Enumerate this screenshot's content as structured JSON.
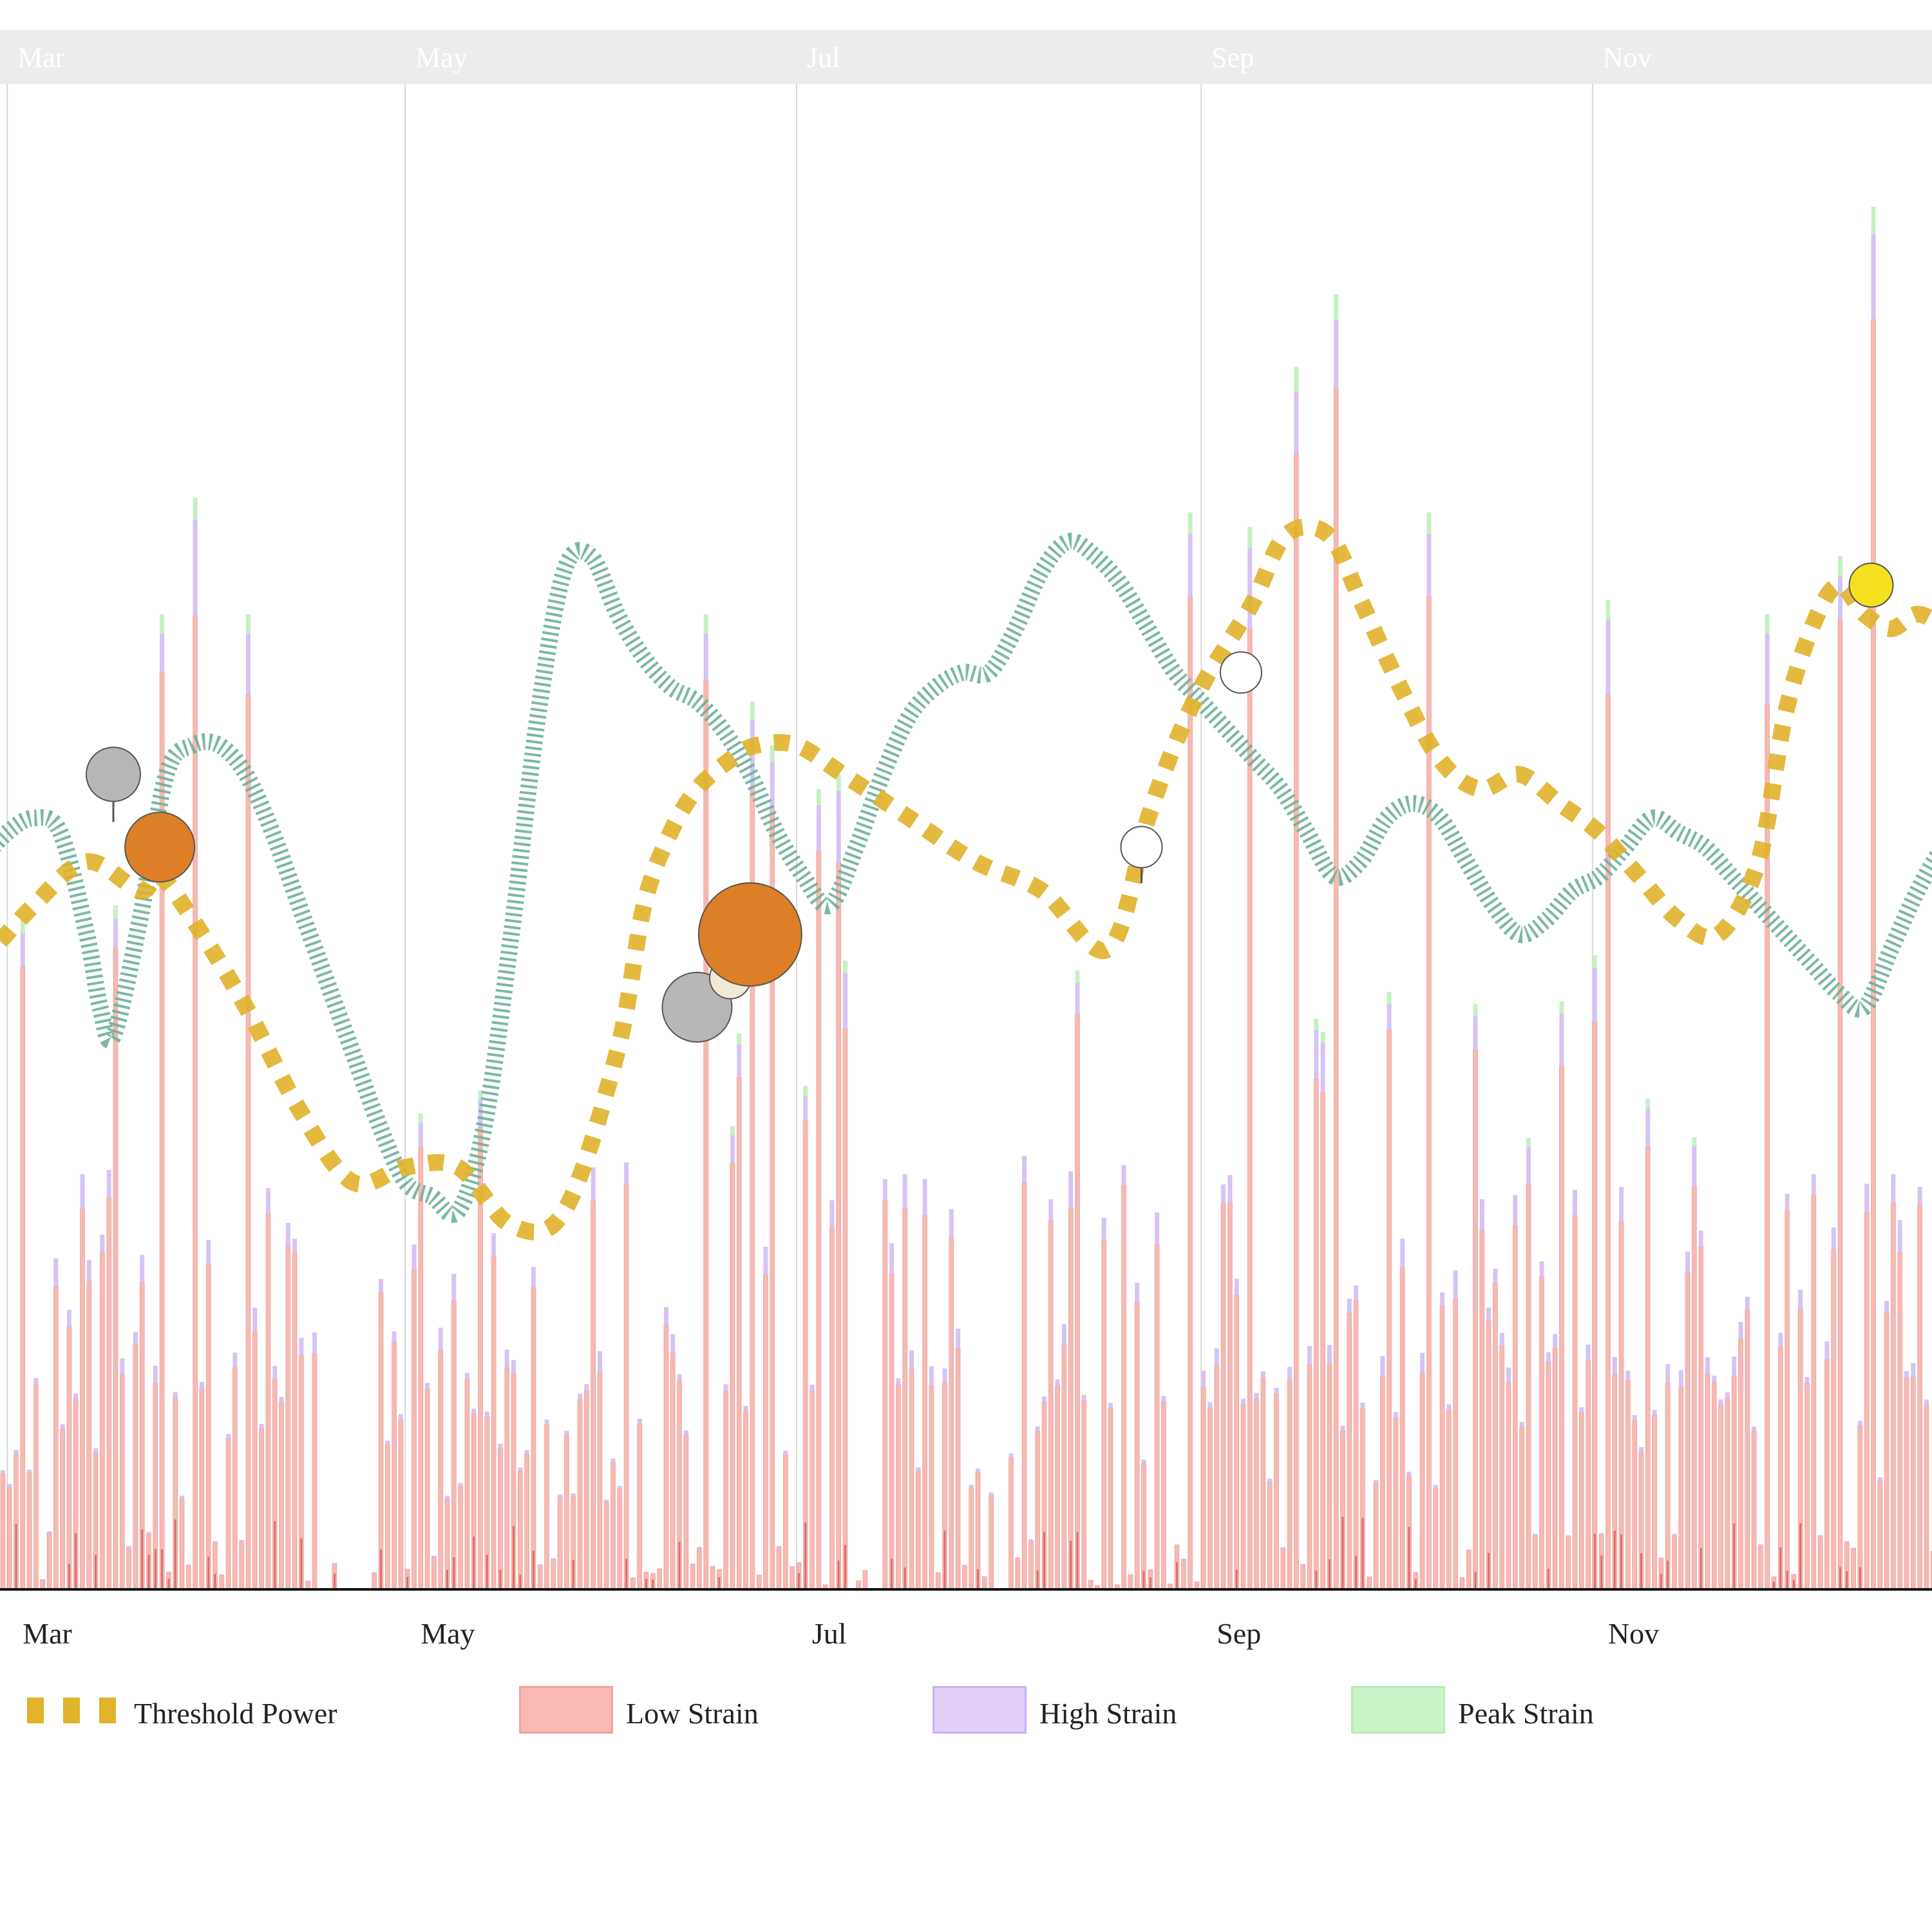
{
  "header_band": {
    "labels": [
      "Mar",
      "May",
      "Jul",
      "Sep",
      "Nov"
    ]
  },
  "chart_data": {
    "type": "bar",
    "title": "",
    "xlabel": "",
    "ylabel": "",
    "ylim": [
      0,
      100
    ],
    "x_range_days": [
      0,
      300
    ],
    "x_ticks": [
      {
        "label": "Mar",
        "day": 4
      },
      {
        "label": "May",
        "day": 64
      },
      {
        "label": "Jul",
        "day": 123
      },
      {
        "label": "Sep",
        "day": 184
      },
      {
        "label": "Nov",
        "day": 243
      }
    ],
    "legend": [
      {
        "name": "Threshold Power",
        "kind": "dashed-line",
        "color": "#e0b32a"
      },
      {
        "name": "Low Strain",
        "kind": "bar",
        "color": "#f6b9b3"
      },
      {
        "name": "High Strain",
        "kind": "bar",
        "color": "#d6c3f4"
      },
      {
        "name": "Peak Strain",
        "kind": "bar",
        "color": "#c4f1c4"
      }
    ],
    "colors": {
      "low": "#f6b9b3",
      "low_edge": "#e8827a",
      "high": "#d6c3f4",
      "peak": "#c4f1c4",
      "inner": "#c9302c",
      "threshold": "#e0b32a",
      "fitness": "#6db09a",
      "grid": "#d9d9d9",
      "band": "#ececec"
    },
    "threshold_power": {
      "x": [
        0,
        8,
        16,
        24,
        27,
        32,
        40,
        48,
        56,
        64,
        72,
        80,
        88,
        96,
        100,
        104,
        108,
        113,
        117,
        123,
        130,
        140,
        150,
        160,
        170,
        176,
        180,
        184,
        188,
        192,
        196,
        200,
        204,
        208,
        214,
        220,
        226,
        232,
        238,
        244,
        250,
        256,
        262,
        268,
        272,
        276,
        280,
        284,
        288,
        292,
        296,
        300
      ],
      "y": [
        43,
        47,
        50,
        48,
        49,
        46,
        40,
        33,
        28,
        29,
        29,
        25,
        26,
        37,
        47,
        52,
        55,
        57,
        58,
        58,
        56,
        53,
        50,
        48,
        44,
        53,
        58,
        62,
        65,
        68,
        72,
        73,
        72,
        68,
        62,
        57,
        55,
        56,
        54,
        52,
        49,
        46,
        45,
        50,
        60,
        66,
        69,
        67,
        66,
        67,
        66,
        64
      ]
    },
    "fitness": {
      "x": [
        0,
        4,
        8,
        12,
        16,
        18,
        20,
        24,
        28,
        32,
        36,
        40,
        44,
        48,
        52,
        56,
        60,
        64,
        68,
        72,
        76,
        80,
        84,
        88,
        92,
        96,
        100,
        104,
        108,
        112,
        116,
        120,
        124,
        128,
        132,
        136,
        140,
        144,
        148,
        152,
        156,
        160,
        164,
        168,
        172,
        176,
        180,
        184,
        188,
        192,
        196,
        200,
        204,
        208,
        212,
        216,
        220,
        224,
        228,
        232,
        236,
        240,
        244,
        248,
        252,
        256,
        260,
        264,
        268,
        272,
        276,
        280,
        284,
        288,
        292,
        296,
        300
      ],
      "y": [
        50,
        52,
        53,
        52,
        45,
        40,
        38,
        46,
        56,
        58,
        58,
        56,
        52,
        47,
        42,
        37,
        32,
        28,
        27,
        26,
        32,
        45,
        60,
        70,
        71,
        67,
        64,
        62,
        61,
        59,
        56,
        52,
        49,
        47,
        51,
        56,
        60,
        62,
        63,
        63,
        66,
        70,
        72,
        71,
        69,
        66,
        63,
        61,
        59,
        57,
        55,
        52,
        49,
        50,
        53,
        54,
        53,
        50,
        47,
        45,
        46,
        48,
        49,
        51,
        53,
        52,
        51,
        49,
        47,
        45,
        43,
        41,
        40,
        44,
        48,
        51,
        52
      ]
    },
    "events": [
      {
        "day": 20,
        "y": 56,
        "size": "medium",
        "fill": "#b7b7b7",
        "stem": 4
      },
      {
        "day": 27,
        "y": 51,
        "size": "large",
        "fill": "#dd7f26",
        "stem": 0
      },
      {
        "day": 108,
        "y": 40,
        "size": "large",
        "fill": "#b7b7b7",
        "stem": 0
      },
      {
        "day": 113,
        "y": 42,
        "size": "small",
        "fill": "#f2e8d4",
        "stem": 0
      },
      {
        "day": 116,
        "y": 45,
        "size": "xlarge",
        "fill": "#dd7f26",
        "stem": 0
      },
      {
        "day": 175,
        "y": 51,
        "size": "small",
        "fill": "#ffffff",
        "stem": 3
      },
      {
        "day": 190,
        "y": 63,
        "size": "small",
        "fill": "#ffffff",
        "stem": 0
      },
      {
        "day": 285,
        "y": 69,
        "size": "medium-small",
        "fill": "#f5e020",
        "stem": 0
      }
    ],
    "bar_hints": {
      "count": 300,
      "seed": 17,
      "spikes": [
        {
          "day": 6,
          "value": 46
        },
        {
          "day": 20,
          "value": 47
        },
        {
          "day": 27,
          "value": 67
        },
        {
          "day": 32,
          "value": 75
        },
        {
          "day": 40,
          "value": 67
        },
        {
          "day": 109,
          "value": 67
        },
        {
          "day": 116,
          "value": 61
        },
        {
          "day": 119,
          "value": 58
        },
        {
          "day": 126,
          "value": 55
        },
        {
          "day": 129,
          "value": 56
        },
        {
          "day": 182,
          "value": 74
        },
        {
          "day": 191,
          "value": 73
        },
        {
          "day": 198,
          "value": 84
        },
        {
          "day": 204,
          "value": 89
        },
        {
          "day": 218,
          "value": 74
        },
        {
          "day": 245,
          "value": 68
        },
        {
          "day": 269,
          "value": 67
        },
        {
          "day": 280,
          "value": 71
        },
        {
          "day": 285,
          "value": 95
        },
        {
          "day": 298,
          "value": 75
        }
      ]
    }
  }
}
